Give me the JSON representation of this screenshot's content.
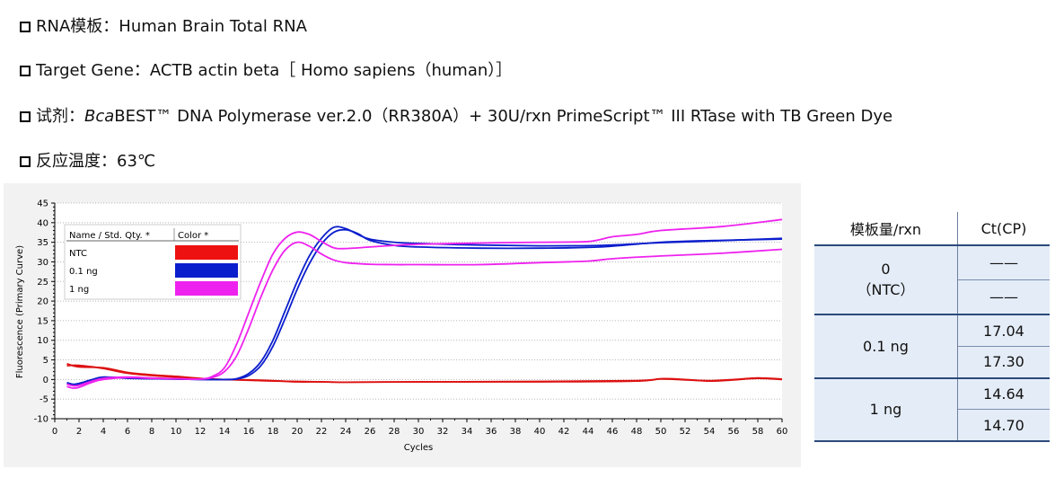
{
  "info": [
    {
      "label": "RNA模板：",
      "value": "Human Brain Total RNA"
    },
    {
      "label": "Target Gene：",
      "value": "ACTB actin beta［ Homo sapiens（human）］"
    },
    {
      "label": "试剂：",
      "italic": "Bca",
      "value": "BEST™ DNA Polymerase ver.2.0（RR380A）+ 30U/rxn PrimeScript™ III RTase with TB Green Dye"
    },
    {
      "label": "反应温度：",
      "value": "63℃"
    }
  ],
  "chart_data": {
    "type": "line",
    "xlabel": "Cycles",
    "ylabel": "Fluorescence (Primary Curve)",
    "xlim": [
      0,
      60
    ],
    "ylim": [
      -10,
      45
    ],
    "xticks": [
      0,
      2,
      4,
      6,
      8,
      10,
      12,
      14,
      16,
      18,
      20,
      22,
      24,
      26,
      28,
      30,
      32,
      34,
      36,
      38,
      40,
      42,
      44,
      46,
      48,
      50,
      52,
      54,
      56,
      58,
      60
    ],
    "yticks": [
      -10,
      -5,
      0,
      5,
      10,
      15,
      20,
      25,
      30,
      35,
      40,
      45
    ],
    "grid": true,
    "legend": {
      "placement": "top-left",
      "header_name": "Name / Std. Qty. *",
      "header_color": "Color *",
      "entries": [
        {
          "name": "NTC",
          "color": "#ee1111"
        },
        {
          "name": "0.1 ng",
          "color": "#0b1ecc"
        },
        {
          "name": "1 ng",
          "color": "#ee22ee"
        }
      ]
    },
    "series": [
      {
        "group": "NTC",
        "color": "#dd1111",
        "x": [
          1,
          2,
          4,
          6,
          8,
          10,
          12,
          14,
          16,
          18,
          20,
          22,
          24,
          30,
          40,
          48,
          50,
          52,
          54,
          56,
          58,
          60
        ],
        "y": [
          3.5,
          3.6,
          2.8,
          1.6,
          1,
          0.6,
          0.2,
          0,
          -0.2,
          -0.4,
          -0.5,
          -0.6,
          -0.7,
          -0.6,
          -0.6,
          -0.4,
          0.2,
          0,
          -0.4,
          -0.1,
          0.3,
          0
        ]
      },
      {
        "group": "NTC",
        "color": "#dd1111",
        "x": [
          1,
          2,
          4,
          6,
          8,
          10,
          12,
          14,
          16,
          18,
          20,
          22,
          24,
          30,
          40,
          48,
          50,
          52,
          54,
          56,
          58,
          60
        ],
        "y": [
          4,
          3.2,
          3,
          1.8,
          1.2,
          0.8,
          0.3,
          0,
          -0.1,
          -0.3,
          -0.6,
          -0.6,
          -0.7,
          -0.6,
          -0.5,
          -0.3,
          0.1,
          -0.1,
          -0.3,
          0,
          0.4,
          0.1
        ]
      },
      {
        "group": "0.1 ng",
        "color": "#0b1ecc",
        "x": [
          1,
          1.5,
          2,
          3,
          4,
          6,
          8,
          10,
          12,
          14,
          15,
          16,
          17,
          18,
          19,
          20,
          21,
          22,
          23,
          24,
          25,
          26,
          28,
          30,
          35,
          40,
          45,
          50,
          55,
          60
        ],
        "y": [
          -1,
          -1.5,
          -1.2,
          -0.2,
          0.5,
          0.3,
          0.2,
          0.1,
          0,
          0,
          0.2,
          1.5,
          4.5,
          10,
          17.5,
          25,
          31.5,
          36,
          38.8,
          38.5,
          37,
          35.8,
          35,
          34.7,
          34.3,
          34.1,
          34.2,
          34.9,
          35.4,
          36
        ]
      },
      {
        "group": "0.1 ng",
        "color": "#0b1ecc",
        "x": [
          1,
          1.5,
          2,
          3,
          4,
          6,
          8,
          10,
          12,
          14,
          15,
          16,
          17,
          18,
          19,
          20,
          21,
          22,
          23,
          24,
          25,
          26,
          28,
          30,
          35,
          40,
          45,
          50,
          55,
          60
        ],
        "y": [
          -0.8,
          -1.2,
          -1,
          -0.1,
          0.6,
          0.4,
          0.2,
          0.1,
          0,
          0,
          0.1,
          1,
          3.5,
          8.5,
          15.5,
          23,
          29.5,
          34.5,
          37.5,
          38.2,
          37.2,
          35.5,
          34.2,
          33.8,
          33.5,
          33.5,
          33.8,
          35,
          35.5,
          35.8
        ]
      },
      {
        "group": "1 ng",
        "color": "#ee22ee",
        "x": [
          1,
          1.5,
          2,
          3,
          4,
          6,
          8,
          10,
          12,
          13,
          14,
          15,
          16,
          17,
          18,
          19,
          20,
          21,
          22,
          23,
          24,
          26,
          28,
          30,
          35,
          40,
          44,
          46,
          50,
          55,
          60
        ],
        "y": [
          -1.8,
          -2.2,
          -2,
          -0.8,
          0,
          0.5,
          0.3,
          0.2,
          0.1,
          0.5,
          2,
          6,
          13,
          21,
          28,
          33,
          35,
          34,
          32,
          30.5,
          29.8,
          29.4,
          29.3,
          29.3,
          29.3,
          29.8,
          30.2,
          30.8,
          31.5,
          32.2,
          33.2
        ]
      },
      {
        "group": "1 ng",
        "color": "#ee22ee",
        "x": [
          1,
          1.5,
          2,
          3,
          4,
          6,
          8,
          10,
          12,
          13,
          14,
          15,
          16,
          17,
          18,
          19,
          20,
          21,
          22,
          23,
          24,
          26,
          28,
          30,
          35,
          40,
          44,
          46,
          48,
          50,
          55,
          60
        ],
        "y": [
          -1.2,
          -1.6,
          -1.5,
          -0.5,
          0.3,
          0.6,
          0.4,
          0.2,
          0.1,
          0.8,
          3,
          9,
          17,
          25,
          32,
          36,
          37.6,
          37,
          35.2,
          33.6,
          33.4,
          33.8,
          34.2,
          34.5,
          34.8,
          35,
          35.2,
          36.4,
          37,
          38,
          39,
          40.8
        ]
      }
    ]
  },
  "ct_table": {
    "headers": [
      "模板量/rxn",
      "Ct(CP)"
    ],
    "groups": [
      {
        "label_lines": [
          "0",
          "（NTC）"
        ],
        "values": [
          "——",
          "——"
        ]
      },
      {
        "label_lines": [
          "0.1  ng"
        ],
        "values": [
          "17.04",
          "17.30"
        ]
      },
      {
        "label_lines": [
          "1  ng"
        ],
        "values": [
          "14.64",
          "14.70"
        ]
      }
    ]
  }
}
